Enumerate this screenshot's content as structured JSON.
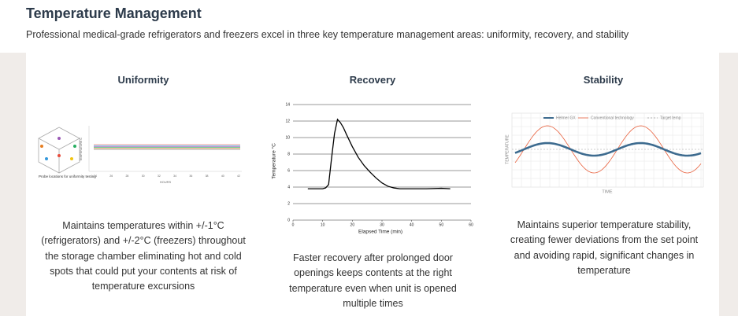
{
  "header": {
    "title": "Temperature Management",
    "subtitle": "Professional medical-grade refrigerators and freezers excel in three key temperature management areas: uniformity, recovery, and stability"
  },
  "sections": [
    {
      "heading": "Uniformity",
      "description": "Maintains temperatures within +/-1°C (refrigerators) and +/-2°C (freezers) throughout the storage chamber eliminating hot and cold spots that could put your contents at risk of temperature excursions",
      "figure": {
        "caption": "Probe locations for uniformity testing",
        "x_label": "HOURS",
        "y_label": "TEMPERATURE C",
        "x_ticks": [
          "24",
          "26",
          "28",
          "30",
          "32",
          "34",
          "36",
          "38",
          "40",
          "42"
        ]
      }
    },
    {
      "heading": "Recovery",
      "description": "Faster recovery after prolonged door openings keeps contents at the right temperature even when unit is opened multiple times",
      "chart_data": {
        "type": "line",
        "x_label": "Elapsed Time (min)",
        "y_label": "Temperature °C",
        "color": "#000000",
        "x": [
          5,
          8,
          10,
          11,
          12,
          13,
          14,
          15,
          16,
          17,
          18,
          20,
          22,
          24,
          26,
          28,
          30,
          32,
          34,
          36,
          40,
          45,
          50,
          53
        ],
        "values": [
          3.8,
          3.8,
          3.8,
          3.9,
          4.3,
          7.5,
          10.5,
          12.2,
          11.8,
          11.2,
          10.4,
          8.9,
          7.6,
          6.6,
          5.8,
          5.1,
          4.5,
          4.1,
          3.9,
          3.8,
          3.8,
          3.8,
          3.85,
          3.8
        ],
        "xlim": [
          0,
          60
        ],
        "xticks": [
          0,
          10,
          20,
          30,
          40,
          50,
          60
        ],
        "ylim": [
          0,
          14
        ],
        "yticks": [
          0,
          2,
          4,
          6,
          8,
          10,
          12,
          14
        ],
        "grid": true
      }
    },
    {
      "heading": "Stability",
      "description": "Maintains superior temperature stability, creating fewer deviations from the set point and avoiding rapid, significant changes in temperature",
      "figure": {
        "legend": [
          "Helmer GX",
          "Conventional technology",
          "Target temp"
        ],
        "x_label": "TIME",
        "y_label": "TEMPERATURE"
      }
    }
  ]
}
